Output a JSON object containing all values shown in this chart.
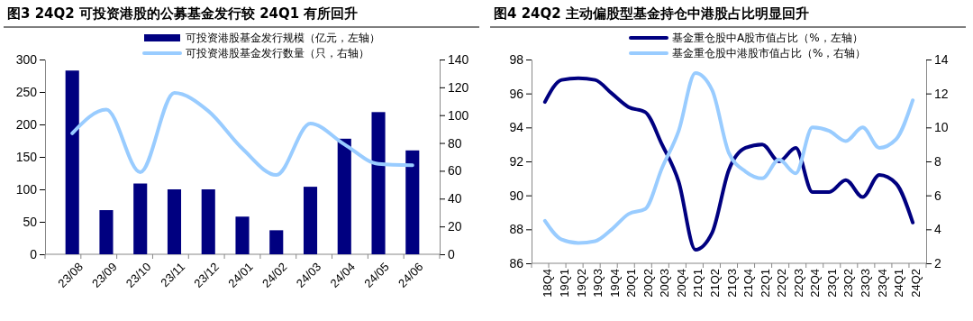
{
  "chart_data": [
    {
      "type": "bar",
      "title": "图3  24Q2 可投资港股的公募基金发行较 24Q1 有所回升",
      "categories": [
        "23/08",
        "23/09",
        "23/10",
        "23/11",
        "23/12",
        "24/01",
        "24/02",
        "24/03",
        "24/04",
        "24/05",
        "24/06"
      ],
      "series": [
        {
          "name": "可投资港股基金发行规模（亿元，左轴）",
          "type": "bar",
          "color": "#000080",
          "values": [
            283,
            68,
            109,
            100,
            100,
            58,
            37,
            104,
            178,
            219,
            160
          ]
        },
        {
          "name": "可投资港股基金发行数量（只，右轴）",
          "type": "line",
          "axis": "y2",
          "color": "#99ccff",
          "values": [
            87,
            104,
            59,
            116,
            103,
            76,
            57,
            94,
            79,
            65,
            64
          ]
        }
      ],
      "ylim": [
        0,
        300
      ],
      "yticks": [
        0,
        50,
        100,
        150,
        200,
        250,
        300
      ],
      "y2lim": [
        0,
        140
      ],
      "y2ticks": [
        0,
        20,
        40,
        60,
        80,
        100,
        120,
        140
      ],
      "legend": "top",
      "grid": false,
      "marker": "none",
      "line_style": "solid"
    },
    {
      "type": "line",
      "title": "图4  24Q2 主动偏股型基金持仓中港股占比明显回升",
      "categories": [
        "18Q4",
        "19Q1",
        "19Q2",
        "19Q3",
        "19Q4",
        "20Q1",
        "20Q2",
        "20Q3",
        "20Q4",
        "21Q1",
        "21Q2",
        "21Q3",
        "21Q4",
        "22Q1",
        "22Q2",
        "22Q3",
        "22Q4",
        "23Q1",
        "23Q2",
        "23Q3",
        "23Q4",
        "24Q1",
        "24Q2"
      ],
      "series": [
        {
          "name": "基金重仓股中A股市值占比（%，左轴）",
          "color": "#000080",
          "values": [
            95.5,
            96.8,
            96.9,
            96.8,
            96.0,
            95.2,
            94.9,
            93.0,
            90.8,
            86.8,
            87.8,
            91.5,
            92.8,
            93.0,
            92.0,
            92.8,
            90.2,
            90.2,
            90.9,
            89.9,
            91.2,
            90.7,
            88.4
          ]
        },
        {
          "name": "基金重仓股中港股市值占比（%，右轴）",
          "axis": "y2",
          "color": "#99ccff",
          "values": [
            4.5,
            3.4,
            3.2,
            3.3,
            4.0,
            4.9,
            5.2,
            7.6,
            9.8,
            13.2,
            12.2,
            8.5,
            7.4,
            7.0,
            8.1,
            7.3,
            10.0,
            9.8,
            9.2,
            10.0,
            8.8,
            9.3,
            11.6
          ]
        }
      ],
      "ylim": [
        86,
        98
      ],
      "yticks": [
        86,
        88,
        90,
        92,
        94,
        96,
        98
      ],
      "y2lim": [
        2,
        14
      ],
      "y2ticks": [
        2,
        4,
        6,
        8,
        10,
        12,
        14
      ],
      "legend": "top",
      "grid": false,
      "marker": "none",
      "line_style": "solid"
    }
  ]
}
